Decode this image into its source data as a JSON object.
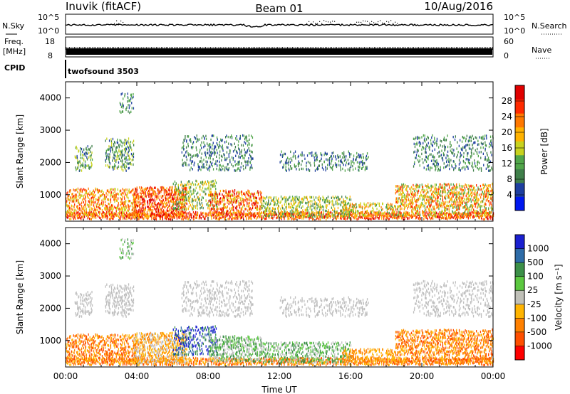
{
  "header": {
    "station": "Inuvik (fitACF)",
    "beam": "Beam 01",
    "date": "10/Aug/2016"
  },
  "panels": {
    "nsky": {
      "label": "N.Sky",
      "ticks": [
        "10^5",
        "10^0"
      ],
      "right_label": "N.Search",
      "right_ticks": [
        "10^5",
        "10^0"
      ]
    },
    "freq": {
      "label_line1": "Freq.",
      "label_line2": "[MHz]",
      "ticks": [
        "18",
        "8"
      ],
      "right_label": "Nave",
      "right_ticks": [
        "60",
        "0"
      ]
    },
    "cpid": {
      "label": "CPID",
      "value": "twofsound 3503"
    }
  },
  "colors": {
    "power_scale": [
      "#0018f0",
      "#1e3fa0",
      "#3f7f4a",
      "#51a64a",
      "#c8d21e",
      "#ffb200",
      "#ff7800",
      "#ff2a00",
      "#e00000"
    ],
    "velocity_scale": [
      "#ff0000",
      "#ff4f00",
      "#ff8000",
      "#ffb400",
      "#c0c0b8",
      "#5cc840",
      "#3c8f48",
      "#2e6ca8",
      "#1a20d0"
    ],
    "ground_scatter": "#bfbfbf"
  },
  "chart_data": [
    {
      "type": "heatmap",
      "title": "",
      "xlabel": "",
      "ylabel": "Slant Range [km]",
      "x_range_hours": [
        0,
        24
      ],
      "ylim": [
        180,
        4500
      ],
      "xticks": [
        "00:00",
        "04:00",
        "08:00",
        "12:00",
        "16:00",
        "20:00",
        "00:00"
      ],
      "yticks": [
        1000,
        2000,
        3000,
        4000
      ],
      "colorbar": {
        "label": "Power [dB]",
        "range": [
          0,
          32
        ],
        "ticks": [
          4,
          8,
          12,
          16,
          20,
          24,
          28
        ]
      }
    },
    {
      "type": "heatmap",
      "title": "",
      "xlabel": "Time UT",
      "ylabel": "Slant Range [km]",
      "x_range_hours": [
        0,
        24
      ],
      "ylim": [
        180,
        4500
      ],
      "xticks": [
        "00:00",
        "04:00",
        "08:00",
        "12:00",
        "16:00",
        "20:00",
        "00:00"
      ],
      "yticks": [
        1000,
        2000,
        3000,
        4000
      ],
      "colorbar": {
        "label": "Velocity",
        "label_unit": "[m s⁻¹]",
        "ticks": [
          "1000",
          "500",
          "100",
          "25",
          "-25",
          "-100",
          "-500",
          "-1000"
        ]
      }
    }
  ]
}
